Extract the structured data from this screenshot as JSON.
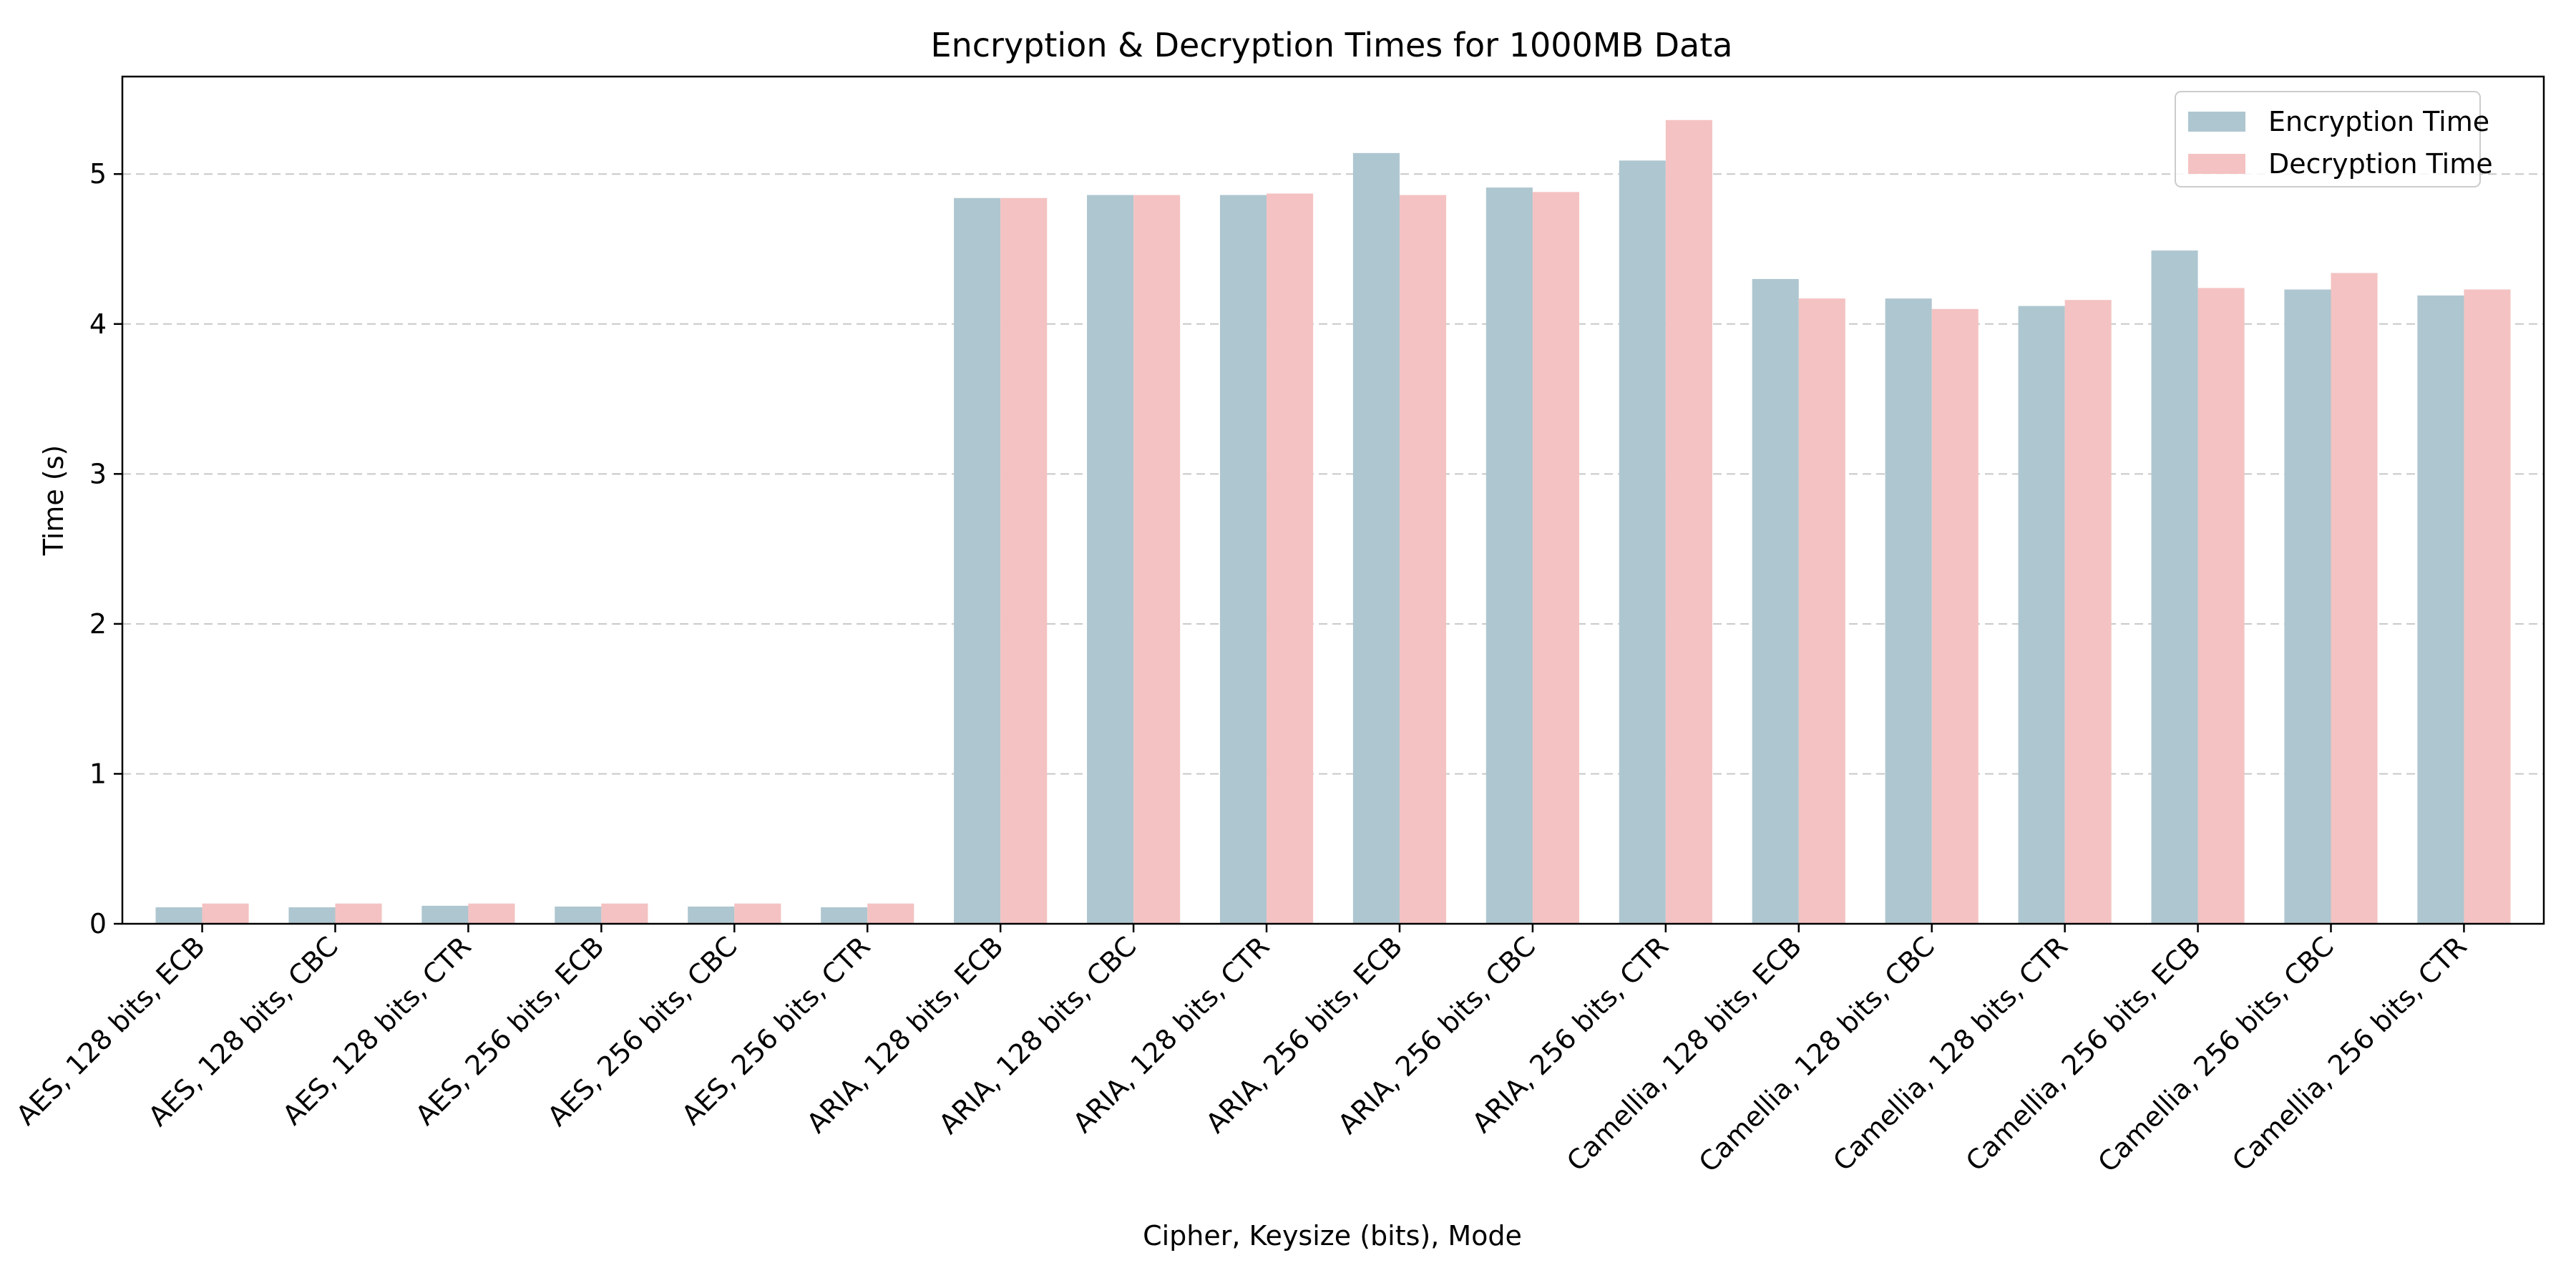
{
  "chart_data": {
    "type": "bar",
    "title": "Encryption & Decryption Times for 1000MB Data",
    "xlabel": "Cipher, Keysize (bits), Mode",
    "ylabel": "Time (s)",
    "ylim": [
      0,
      5.65
    ],
    "yticks": [
      0,
      1,
      2,
      3,
      4,
      5
    ],
    "grid": "y-dashed",
    "legend_position": "top-right",
    "categories": [
      "AES, 128 bits, ECB",
      "AES, 128 bits, CBC",
      "AES, 128 bits, CTR",
      "AES, 256 bits, ECB",
      "AES, 256 bits, CBC",
      "AES, 256 bits, CTR",
      "ARIA, 128 bits, ECB",
      "ARIA, 128 bits, CBC",
      "ARIA, 128 bits, CTR",
      "ARIA, 256 bits, ECB",
      "ARIA, 256 bits, CBC",
      "ARIA, 256 bits, CTR",
      "Camellia, 128 bits, ECB",
      "Camellia, 128 bits, CBC",
      "Camellia, 128 bits, CTR",
      "Camellia, 256 bits, ECB",
      "Camellia, 256 bits, CBC",
      "Camellia, 256 bits, CTR"
    ],
    "series": [
      {
        "name": "Encryption Time",
        "color": "#aec6cf",
        "values": [
          0.11,
          0.11,
          0.12,
          0.115,
          0.115,
          0.11,
          4.84,
          4.86,
          4.86,
          5.14,
          4.91,
          5.09,
          4.3,
          4.17,
          4.12,
          4.49,
          4.23,
          4.19
        ]
      },
      {
        "name": "Decryption Time",
        "color": "#f4c2c2",
        "values": [
          0.135,
          0.135,
          0.135,
          0.135,
          0.135,
          0.135,
          4.84,
          4.86,
          4.87,
          4.86,
          4.88,
          5.36,
          4.17,
          4.1,
          4.16,
          4.24,
          4.34,
          4.23
        ]
      }
    ]
  }
}
